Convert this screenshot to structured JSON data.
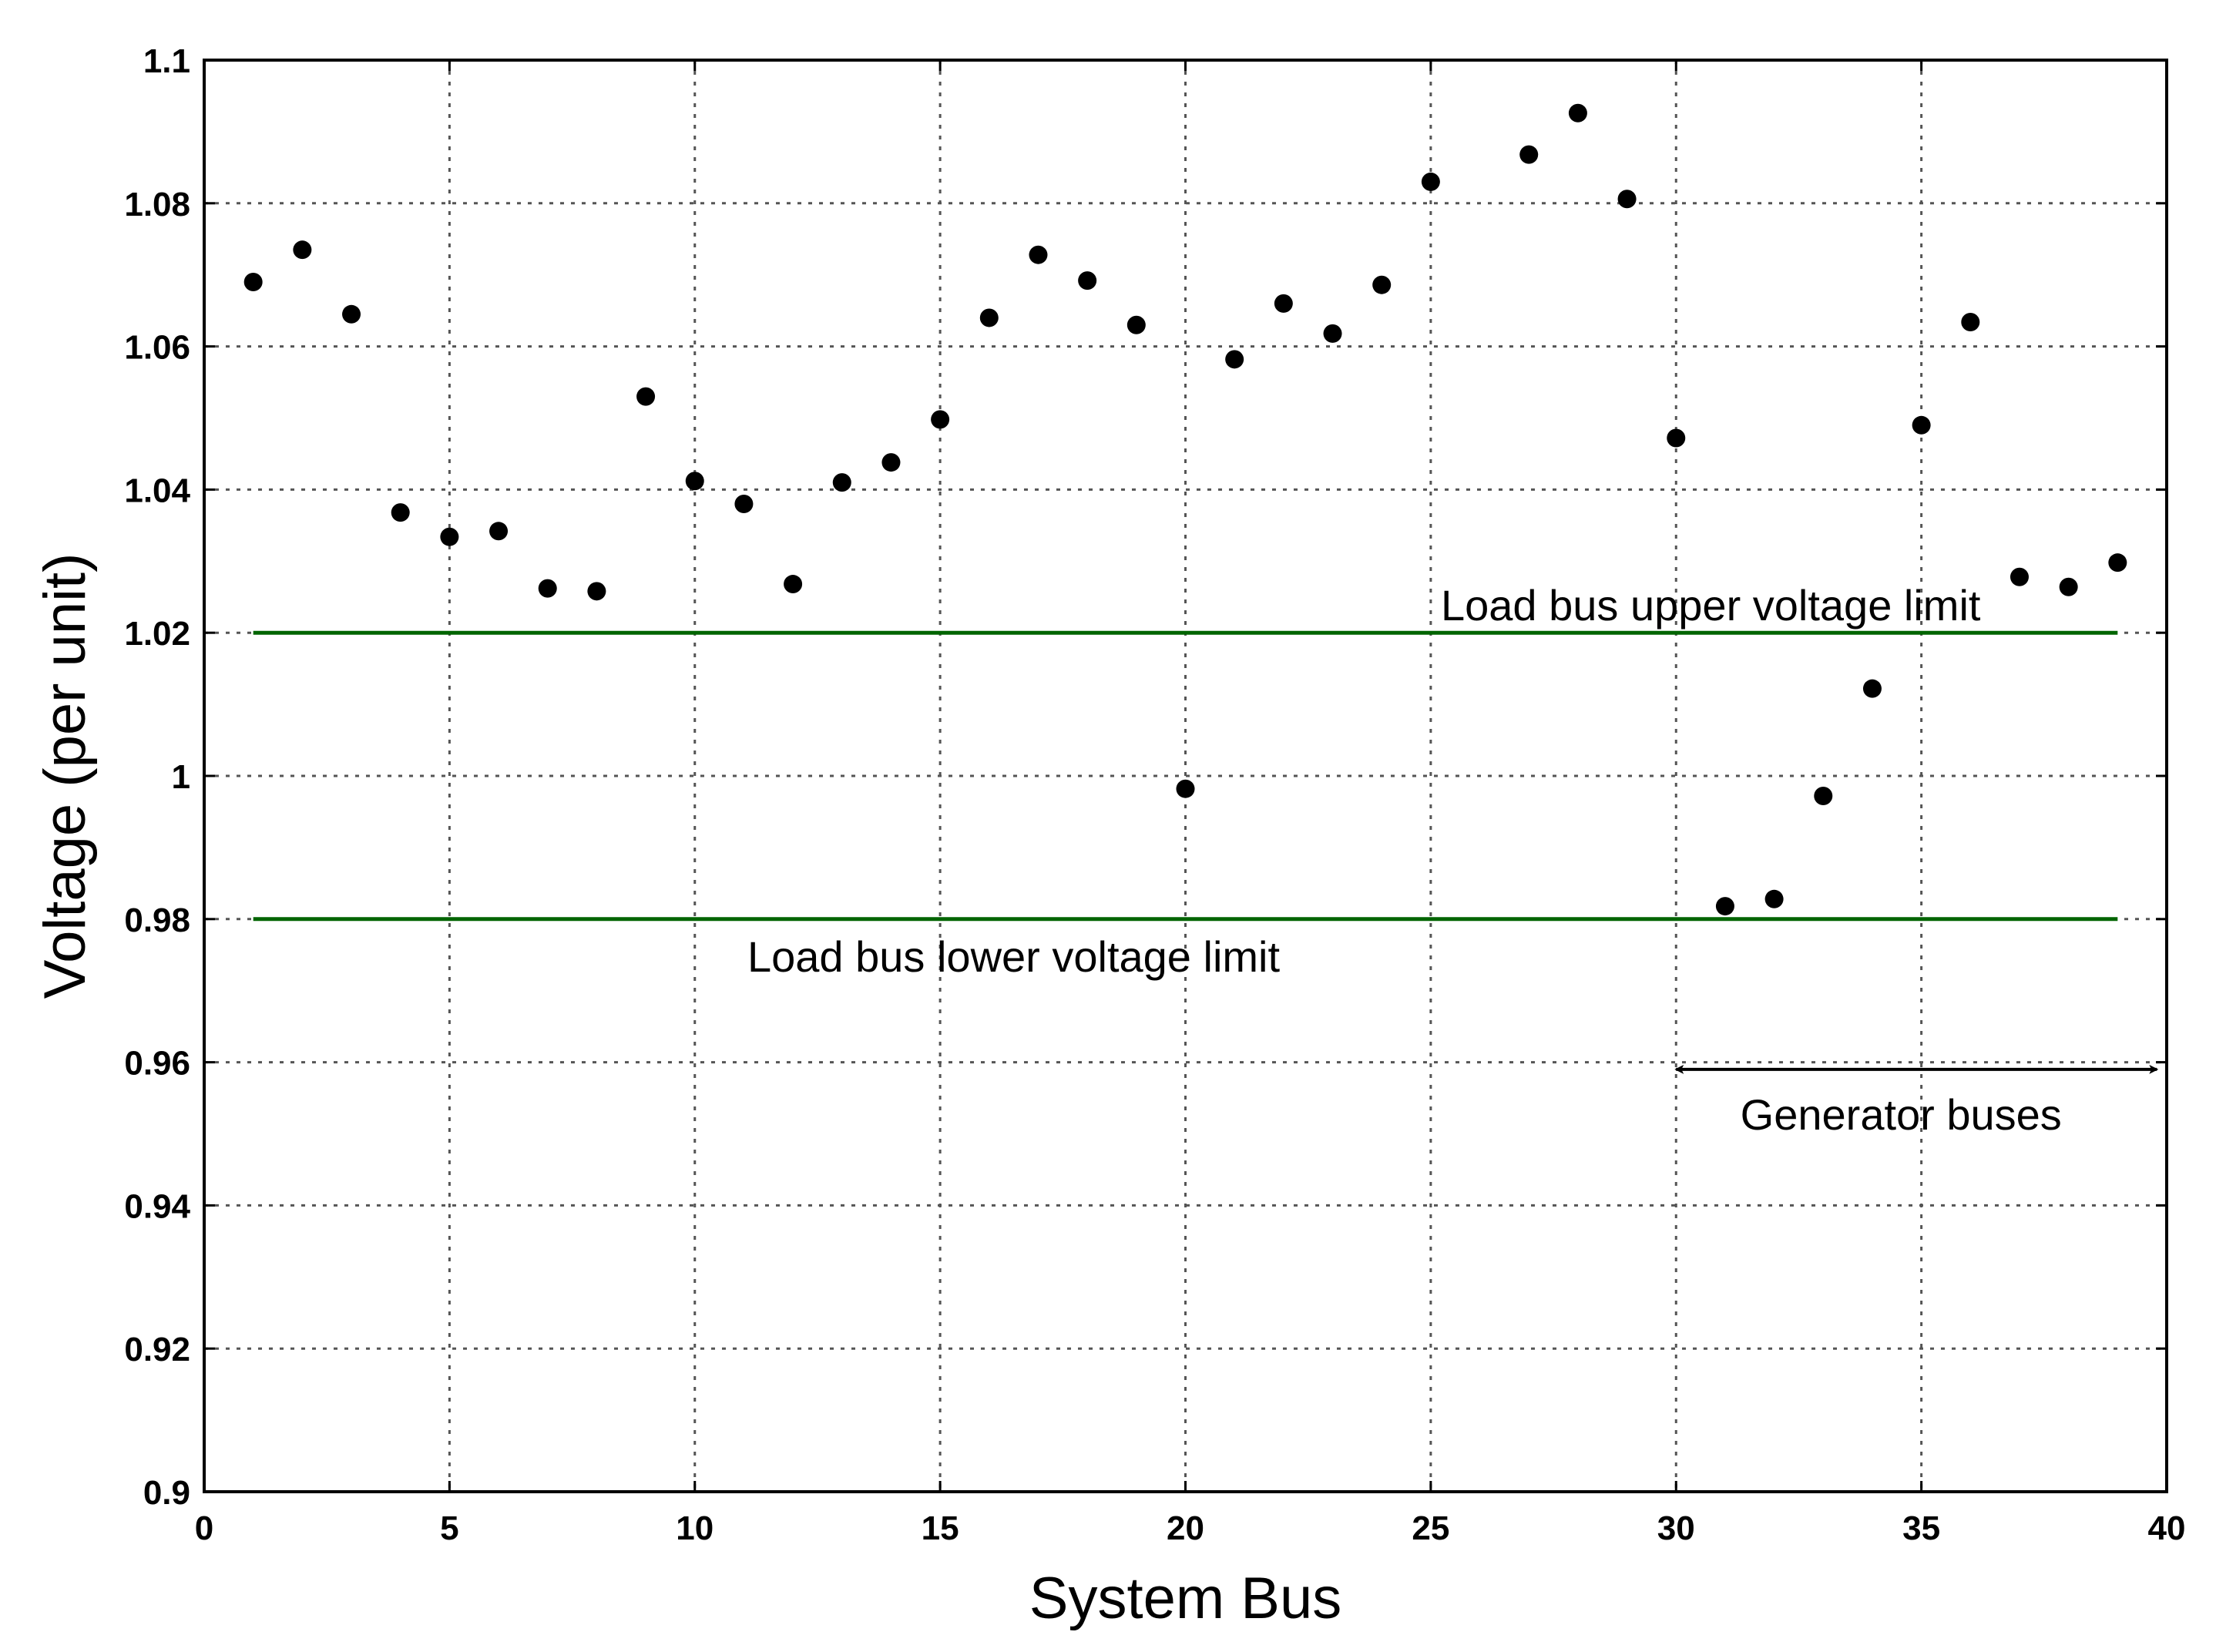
{
  "chart_data": {
    "type": "scatter",
    "title": "",
    "xlabel": "System Bus",
    "ylabel": "Voltage (per unit)",
    "xlim": [
      0,
      40
    ],
    "ylim": [
      0.9,
      1.1
    ],
    "grid": true,
    "x_ticks": [
      "0",
      "5",
      "10",
      "15",
      "20",
      "25",
      "30",
      "35",
      "40"
    ],
    "y_ticks": [
      "0.9",
      "0.92",
      "0.94",
      "0.96",
      "0.98",
      "1",
      "1.02",
      "1.04",
      "1.06",
      "1.08",
      "1.1"
    ],
    "series": [
      {
        "marker_color": "#000000",
        "x": [
          1,
          2,
          3,
          4,
          5,
          6,
          7,
          8,
          9,
          10,
          11,
          12,
          13,
          14,
          15,
          16,
          17,
          18,
          19,
          20,
          21,
          22,
          23,
          24,
          25,
          27,
          28,
          29,
          30,
          31,
          32,
          33,
          34,
          35,
          36,
          37,
          38,
          39
        ],
        "y": [
          1.069,
          1.0735,
          1.0645,
          1.0368,
          1.0334,
          1.0342,
          1.0262,
          1.0258,
          1.053,
          1.0412,
          1.038,
          1.0268,
          1.041,
          1.0438,
          1.0498,
          1.064,
          1.0728,
          1.0692,
          1.063,
          0.9982,
          1.0582,
          1.066,
          1.0618,
          1.0686,
          1.083,
          1.0868,
          1.0926,
          1.0806,
          1.0472,
          0.9818,
          0.9828,
          0.9972,
          1.0122,
          1.049,
          1.0634,
          1.0278,
          1.0264,
          1.0298
        ]
      }
    ],
    "reference_lines": [
      {
        "y": 1.02,
        "x_range": [
          1,
          39
        ],
        "label": "Load bus upper voltage limit",
        "color": "#006400"
      },
      {
        "y": 0.98,
        "x_range": [
          1,
          39
        ],
        "label": "Load bus lower voltage limit",
        "color": "#006400"
      }
    ],
    "annotations": [
      {
        "label": "Generator buses",
        "x_range": [
          30,
          39.8
        ],
        "y": 0.959
      }
    ]
  }
}
